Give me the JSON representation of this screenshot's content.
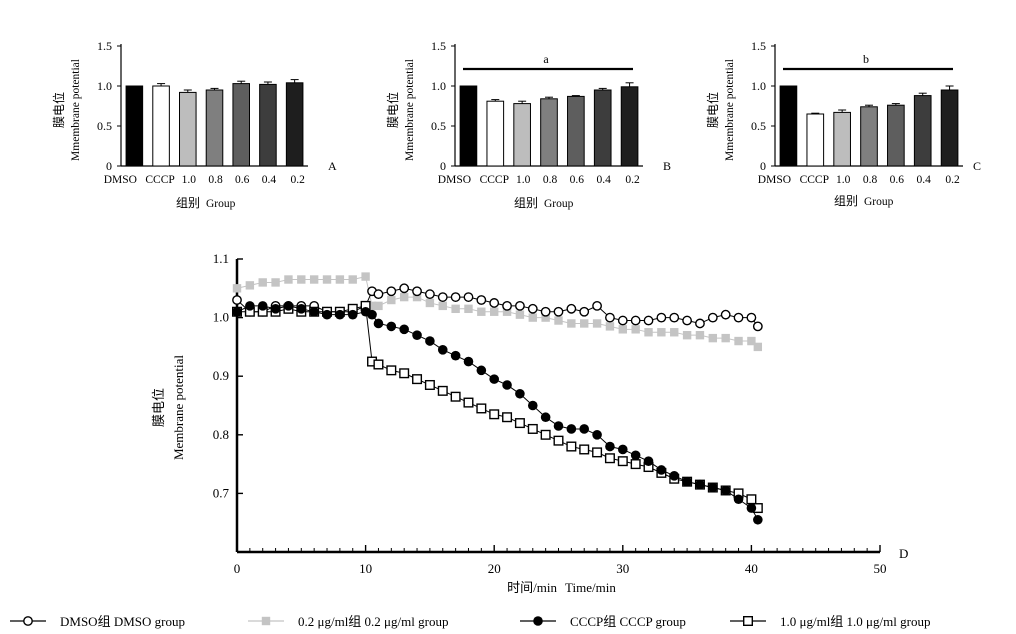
{
  "chart_data": [
    {
      "panel": "A",
      "type": "bar",
      "ylabel_zh": "膜电位",
      "ylabel_en": "Mmembrane potential",
      "xlabel_zh": "组别",
      "xlabel_en": "Group",
      "categories": [
        "DMSO",
        "CCCP",
        "1.0",
        "0.8",
        "0.6",
        "0.4",
        "0.2"
      ],
      "values": [
        1.0,
        1.0,
        0.92,
        0.95,
        1.03,
        1.02,
        1.04
      ],
      "errors": [
        0.0,
        0.03,
        0.03,
        0.02,
        0.03,
        0.03,
        0.04
      ],
      "colors": [
        "#000000",
        "#ffffff",
        "#bdbdbd",
        "#7f7f7f",
        "#5e5e5e",
        "#3d3d3d",
        "#1e1e1e"
      ],
      "ylim": [
        0,
        1.5
      ],
      "yticks": [
        "0",
        "0.5",
        "1.0",
        "1.5"
      ],
      "significance": null
    },
    {
      "panel": "B",
      "type": "bar",
      "ylabel_zh": "膜电位",
      "ylabel_en": "Mmembrane potential",
      "xlabel_zh": "组别",
      "xlabel_en": "Group",
      "categories": [
        "DMSO",
        "CCCP",
        "1.0",
        "0.8",
        "0.6",
        "0.4",
        "0.2"
      ],
      "values": [
        1.0,
        0.81,
        0.78,
        0.84,
        0.87,
        0.95,
        0.99
      ],
      "errors": [
        0.0,
        0.02,
        0.03,
        0.02,
        0.01,
        0.02,
        0.05
      ],
      "colors": [
        "#000000",
        "#ffffff",
        "#bdbdbd",
        "#7f7f7f",
        "#5e5e5e",
        "#3d3d3d",
        "#1e1e1e"
      ],
      "ylim": [
        0,
        1.5
      ],
      "yticks": [
        "0",
        "0.5",
        "1.0",
        "1.5"
      ],
      "significance": "a"
    },
    {
      "panel": "C",
      "type": "bar",
      "ylabel_zh": "膜电位",
      "ylabel_en": "Mmembrane potential",
      "xlabel_zh": "组别",
      "xlabel_en": "Group",
      "categories": [
        "DMSO",
        "CCCP",
        "1.0",
        "0.8",
        "0.6",
        "0.4",
        "0.2"
      ],
      "values": [
        1.0,
        0.65,
        0.67,
        0.74,
        0.76,
        0.88,
        0.95
      ],
      "errors": [
        0.0,
        0.01,
        0.03,
        0.02,
        0.02,
        0.03,
        0.05
      ],
      "colors": [
        "#000000",
        "#ffffff",
        "#bdbdbd",
        "#7f7f7f",
        "#5e5e5e",
        "#3d3d3d",
        "#1e1e1e"
      ],
      "ylim": [
        0,
        1.5
      ],
      "yticks": [
        "0",
        "0.5",
        "1.0",
        "1.5"
      ],
      "significance": "b"
    },
    {
      "panel": "D",
      "type": "line",
      "ylabel_zh": "膜电位",
      "ylabel_en": "Membrane potential",
      "xlabel_zh": "时间/min",
      "xlabel_en": "Time/min",
      "xlim": [
        0,
        50
      ],
      "ylim": [
        0.6,
        1.1
      ],
      "xticks": [
        "0",
        "10",
        "20",
        "30",
        "40",
        "50"
      ],
      "yticks": [
        "0.7",
        "0.8",
        "0.9",
        "1.0",
        "1.1"
      ],
      "series": [
        {
          "name": "DMSO组 DMSO group",
          "marker": "open-circle",
          "color": "#000000",
          "x": [
            0,
            1,
            2,
            3,
            4,
            5,
            6,
            7,
            8,
            9,
            10,
            10.5,
            11,
            12,
            13,
            14,
            15,
            16,
            17,
            18,
            19,
            20,
            21,
            22,
            23,
            24,
            25,
            26,
            27,
            28,
            29,
            30,
            31,
            32,
            33,
            34,
            35,
            36,
            37,
            38,
            39,
            40,
            40.5
          ],
          "y": [
            1.03,
            1.01,
            1.01,
            1.02,
            1.02,
            1.02,
            1.02,
            1.01,
            1.01,
            1.01,
            1.02,
            1.045,
            1.04,
            1.045,
            1.05,
            1.045,
            1.04,
            1.035,
            1.035,
            1.035,
            1.03,
            1.025,
            1.02,
            1.02,
            1.015,
            1.01,
            1.01,
            1.015,
            1.01,
            1.02,
            1.0,
            0.995,
            0.995,
            0.995,
            1.0,
            1.0,
            0.995,
            0.99,
            1.0,
            1.005,
            1.0,
            1.0,
            0.985
          ]
        },
        {
          "name": "0.2 μg/ml组 0.2 μg/ml group",
          "marker": "filled-square",
          "color": "#c4c4c4",
          "x": [
            0,
            1,
            2,
            3,
            4,
            5,
            6,
            7,
            8,
            9,
            10,
            10.5,
            11,
            12,
            13,
            14,
            15,
            16,
            17,
            18,
            19,
            20,
            21,
            22,
            23,
            24,
            25,
            26,
            27,
            28,
            29,
            30,
            31,
            32,
            33,
            34,
            35,
            36,
            37,
            38,
            39,
            40,
            40.5
          ],
          "y": [
            1.05,
            1.055,
            1.06,
            1.06,
            1.065,
            1.065,
            1.065,
            1.065,
            1.065,
            1.065,
            1.07,
            1.02,
            1.02,
            1.03,
            1.035,
            1.035,
            1.025,
            1.02,
            1.015,
            1.015,
            1.01,
            1.01,
            1.01,
            1.005,
            1.0,
            1.0,
            0.995,
            0.99,
            0.99,
            0.99,
            0.985,
            0.98,
            0.98,
            0.975,
            0.975,
            0.975,
            0.97,
            0.97,
            0.965,
            0.965,
            0.96,
            0.96,
            0.95
          ]
        },
        {
          "name": "CCCP组 CCCP group",
          "marker": "filled-circle",
          "color": "#000000",
          "x": [
            0,
            1,
            2,
            3,
            4,
            5,
            6,
            7,
            8,
            9,
            10,
            10.5,
            11,
            12,
            13,
            14,
            15,
            16,
            17,
            18,
            19,
            20,
            21,
            22,
            23,
            24,
            25,
            26,
            27,
            28,
            29,
            30,
            31,
            32,
            33,
            34,
            35,
            36,
            37,
            38,
            39,
            40,
            40.5
          ],
          "y": [
            1.01,
            1.02,
            1.02,
            1.015,
            1.02,
            1.015,
            1.01,
            1.005,
            1.005,
            1.005,
            1.01,
            1.005,
            0.99,
            0.985,
            0.98,
            0.97,
            0.96,
            0.945,
            0.935,
            0.925,
            0.91,
            0.895,
            0.885,
            0.87,
            0.85,
            0.83,
            0.815,
            0.81,
            0.81,
            0.8,
            0.78,
            0.775,
            0.765,
            0.755,
            0.74,
            0.73,
            0.72,
            0.715,
            0.71,
            0.705,
            0.69,
            0.675,
            0.655
          ]
        },
        {
          "name": "1.0 μg/ml组 1.0 μg/ml group",
          "marker": "open-square",
          "color": "#000000",
          "x": [
            0,
            1,
            2,
            3,
            4,
            5,
            6,
            7,
            8,
            9,
            10,
            10.5,
            11,
            12,
            13,
            14,
            15,
            16,
            17,
            18,
            19,
            20,
            21,
            22,
            23,
            24,
            25,
            26,
            27,
            28,
            29,
            30,
            31,
            32,
            33,
            34,
            35,
            36,
            37,
            38,
            39,
            40,
            40.5
          ],
          "y": [
            1.01,
            1.01,
            1.01,
            1.01,
            1.015,
            1.01,
            1.01,
            1.01,
            1.01,
            1.015,
            1.02,
            0.925,
            0.92,
            0.91,
            0.905,
            0.895,
            0.885,
            0.875,
            0.865,
            0.855,
            0.845,
            0.835,
            0.83,
            0.82,
            0.81,
            0.8,
            0.79,
            0.78,
            0.775,
            0.77,
            0.76,
            0.755,
            0.75,
            0.745,
            0.735,
            0.725,
            0.72,
            0.715,
            0.71,
            0.705,
            0.7,
            0.69,
            0.675
          ]
        }
      ]
    }
  ]
}
